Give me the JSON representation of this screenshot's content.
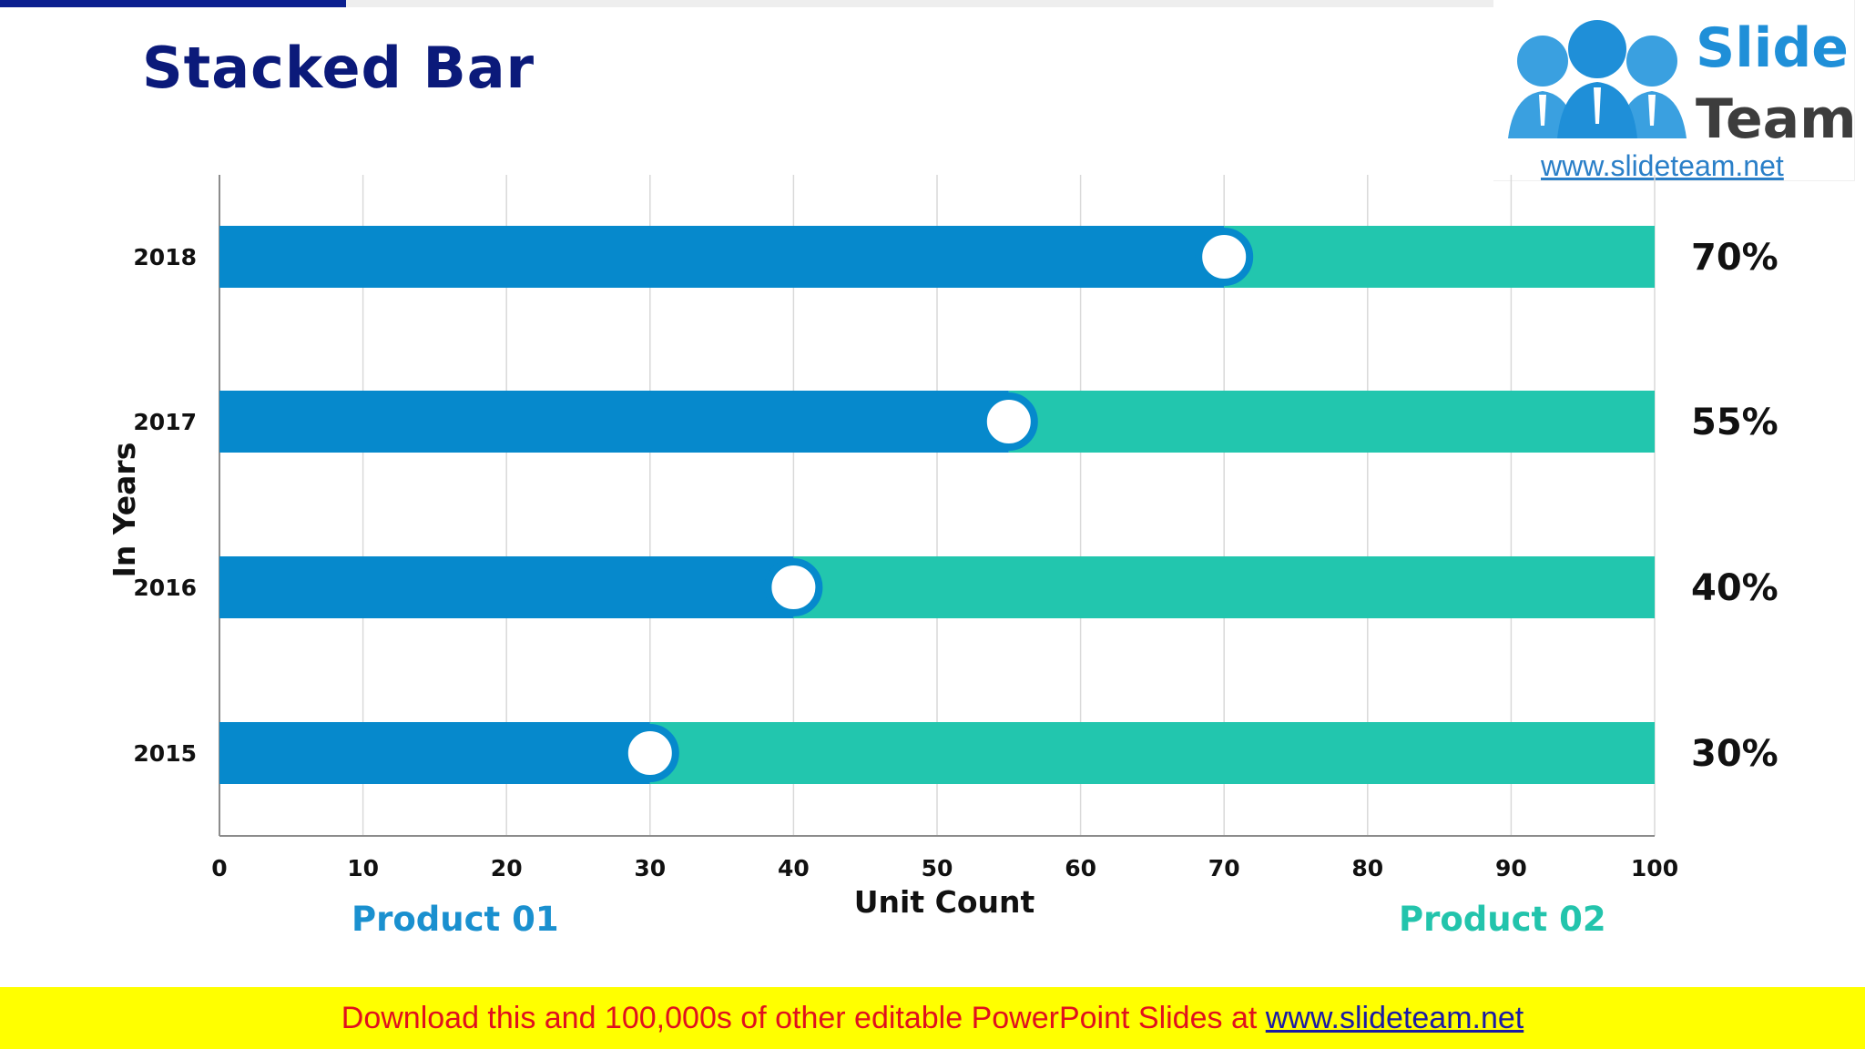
{
  "title": "Stacked Bar",
  "logo": {
    "word1": "Slide",
    "word2": "Team",
    "url": "www.slideteam.net"
  },
  "legend": {
    "product1": "Product 01",
    "product2": "Product 02"
  },
  "colors": {
    "product1": "#0689cc",
    "product2": "#22c6ae",
    "title": "#0b1a7a",
    "footer_bg": "#ffff00",
    "footer_text": "#e0101e"
  },
  "footer": {
    "text": "Download this and 100,000s of other editable PowerPoint Slides at ",
    "link": "www.slideteam.net"
  },
  "chart_data": {
    "type": "bar",
    "orientation": "horizontal",
    "stacked": true,
    "title": "",
    "xlabel": "Unit Count",
    "ylabel": "In Years",
    "categories": [
      "2018",
      "2017",
      "2016",
      "2015"
    ],
    "xlim": [
      0,
      100
    ],
    "xticks": [
      0,
      10,
      20,
      30,
      40,
      50,
      60,
      70,
      80,
      90,
      100
    ],
    "grid": true,
    "series": [
      {
        "name": "Product 01",
        "values": [
          70,
          55,
          40,
          30
        ]
      },
      {
        "name": "Product 02",
        "values": [
          30,
          45,
          60,
          70
        ]
      }
    ],
    "value_labels": [
      "70%",
      "55%",
      "40%",
      "30%"
    ]
  }
}
